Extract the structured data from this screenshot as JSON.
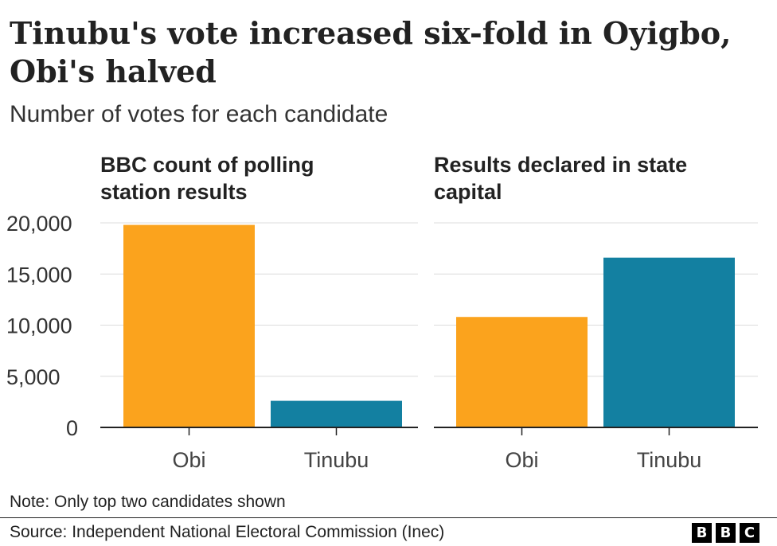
{
  "header": {
    "title": "Tinubu's vote increased six-fold in Oyigbo, Obi's halved",
    "subtitle": "Number of votes for each candidate"
  },
  "chart_data": [
    {
      "type": "bar",
      "title": "BBC count of polling station results",
      "categories": [
        "Obi",
        "Tinubu"
      ],
      "values": [
        19800,
        2600
      ],
      "colors": [
        "#fba31d",
        "#1380a1"
      ],
      "ylim": [
        0,
        20000
      ],
      "yticks": [
        0,
        5000,
        10000,
        15000,
        20000
      ],
      "ytick_labels": [
        "0",
        "5,000",
        "10,000",
        "15,000",
        "20,000"
      ],
      "grid": true
    },
    {
      "type": "bar",
      "title": "Results declared in state capital",
      "categories": [
        "Obi",
        "Tinubu"
      ],
      "values": [
        10800,
        16600
      ],
      "colors": [
        "#fba31d",
        "#1380a1"
      ],
      "ylim": [
        0,
        20000
      ],
      "yticks": [
        0,
        5000,
        10000,
        15000,
        20000
      ],
      "grid": true
    }
  ],
  "footer": {
    "note": "Note: Only top two candidates shown",
    "source": "Source: Independent National Electoral Commission (Inec)",
    "logo_letters": [
      "B",
      "B",
      "C"
    ]
  }
}
